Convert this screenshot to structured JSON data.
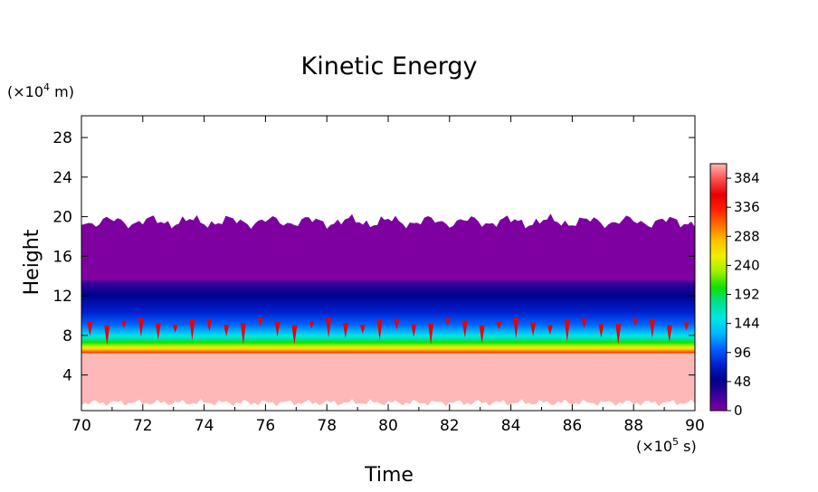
{
  "chart_data": {
    "type": "heatmap",
    "title": "Kinetic Energy",
    "xlabel": "Time",
    "ylabel": "Height",
    "x_unit_prefix": "(×10",
    "x_unit_exp": "5",
    "x_unit_suffix": " s)",
    "y_unit_prefix": "(×10",
    "y_unit_exp": "4",
    "y_unit_suffix": " m)",
    "xlim": [
      70,
      90
    ],
    "ylim": [
      0.4,
      30.2
    ],
    "x_ticks": [
      70,
      72,
      74,
      76,
      78,
      80,
      82,
      84,
      86,
      88,
      90
    ],
    "y_ticks": [
      4,
      8,
      12,
      16,
      20,
      24,
      28
    ],
    "colorbar": {
      "ticks": [
        0,
        48,
        96,
        144,
        192,
        240,
        288,
        336,
        384
      ],
      "range": [
        0,
        408
      ],
      "colors": [
        "#7f00a0",
        "#3a009c",
        "#00008c",
        "#0020d0",
        "#0060ff",
        "#00b8ff",
        "#00e8e0",
        "#00e090",
        "#10e000",
        "#a0f000",
        "#f0f000",
        "#ffc000",
        "#ff7000",
        "#ff2000",
        "#e80000",
        "#ff5050",
        "#ffb8b8"
      ]
    },
    "field_description_levels": {
      "ground_height": 1.2,
      "saturated_top": 9.2,
      "energy_top": 19.5
    }
  }
}
